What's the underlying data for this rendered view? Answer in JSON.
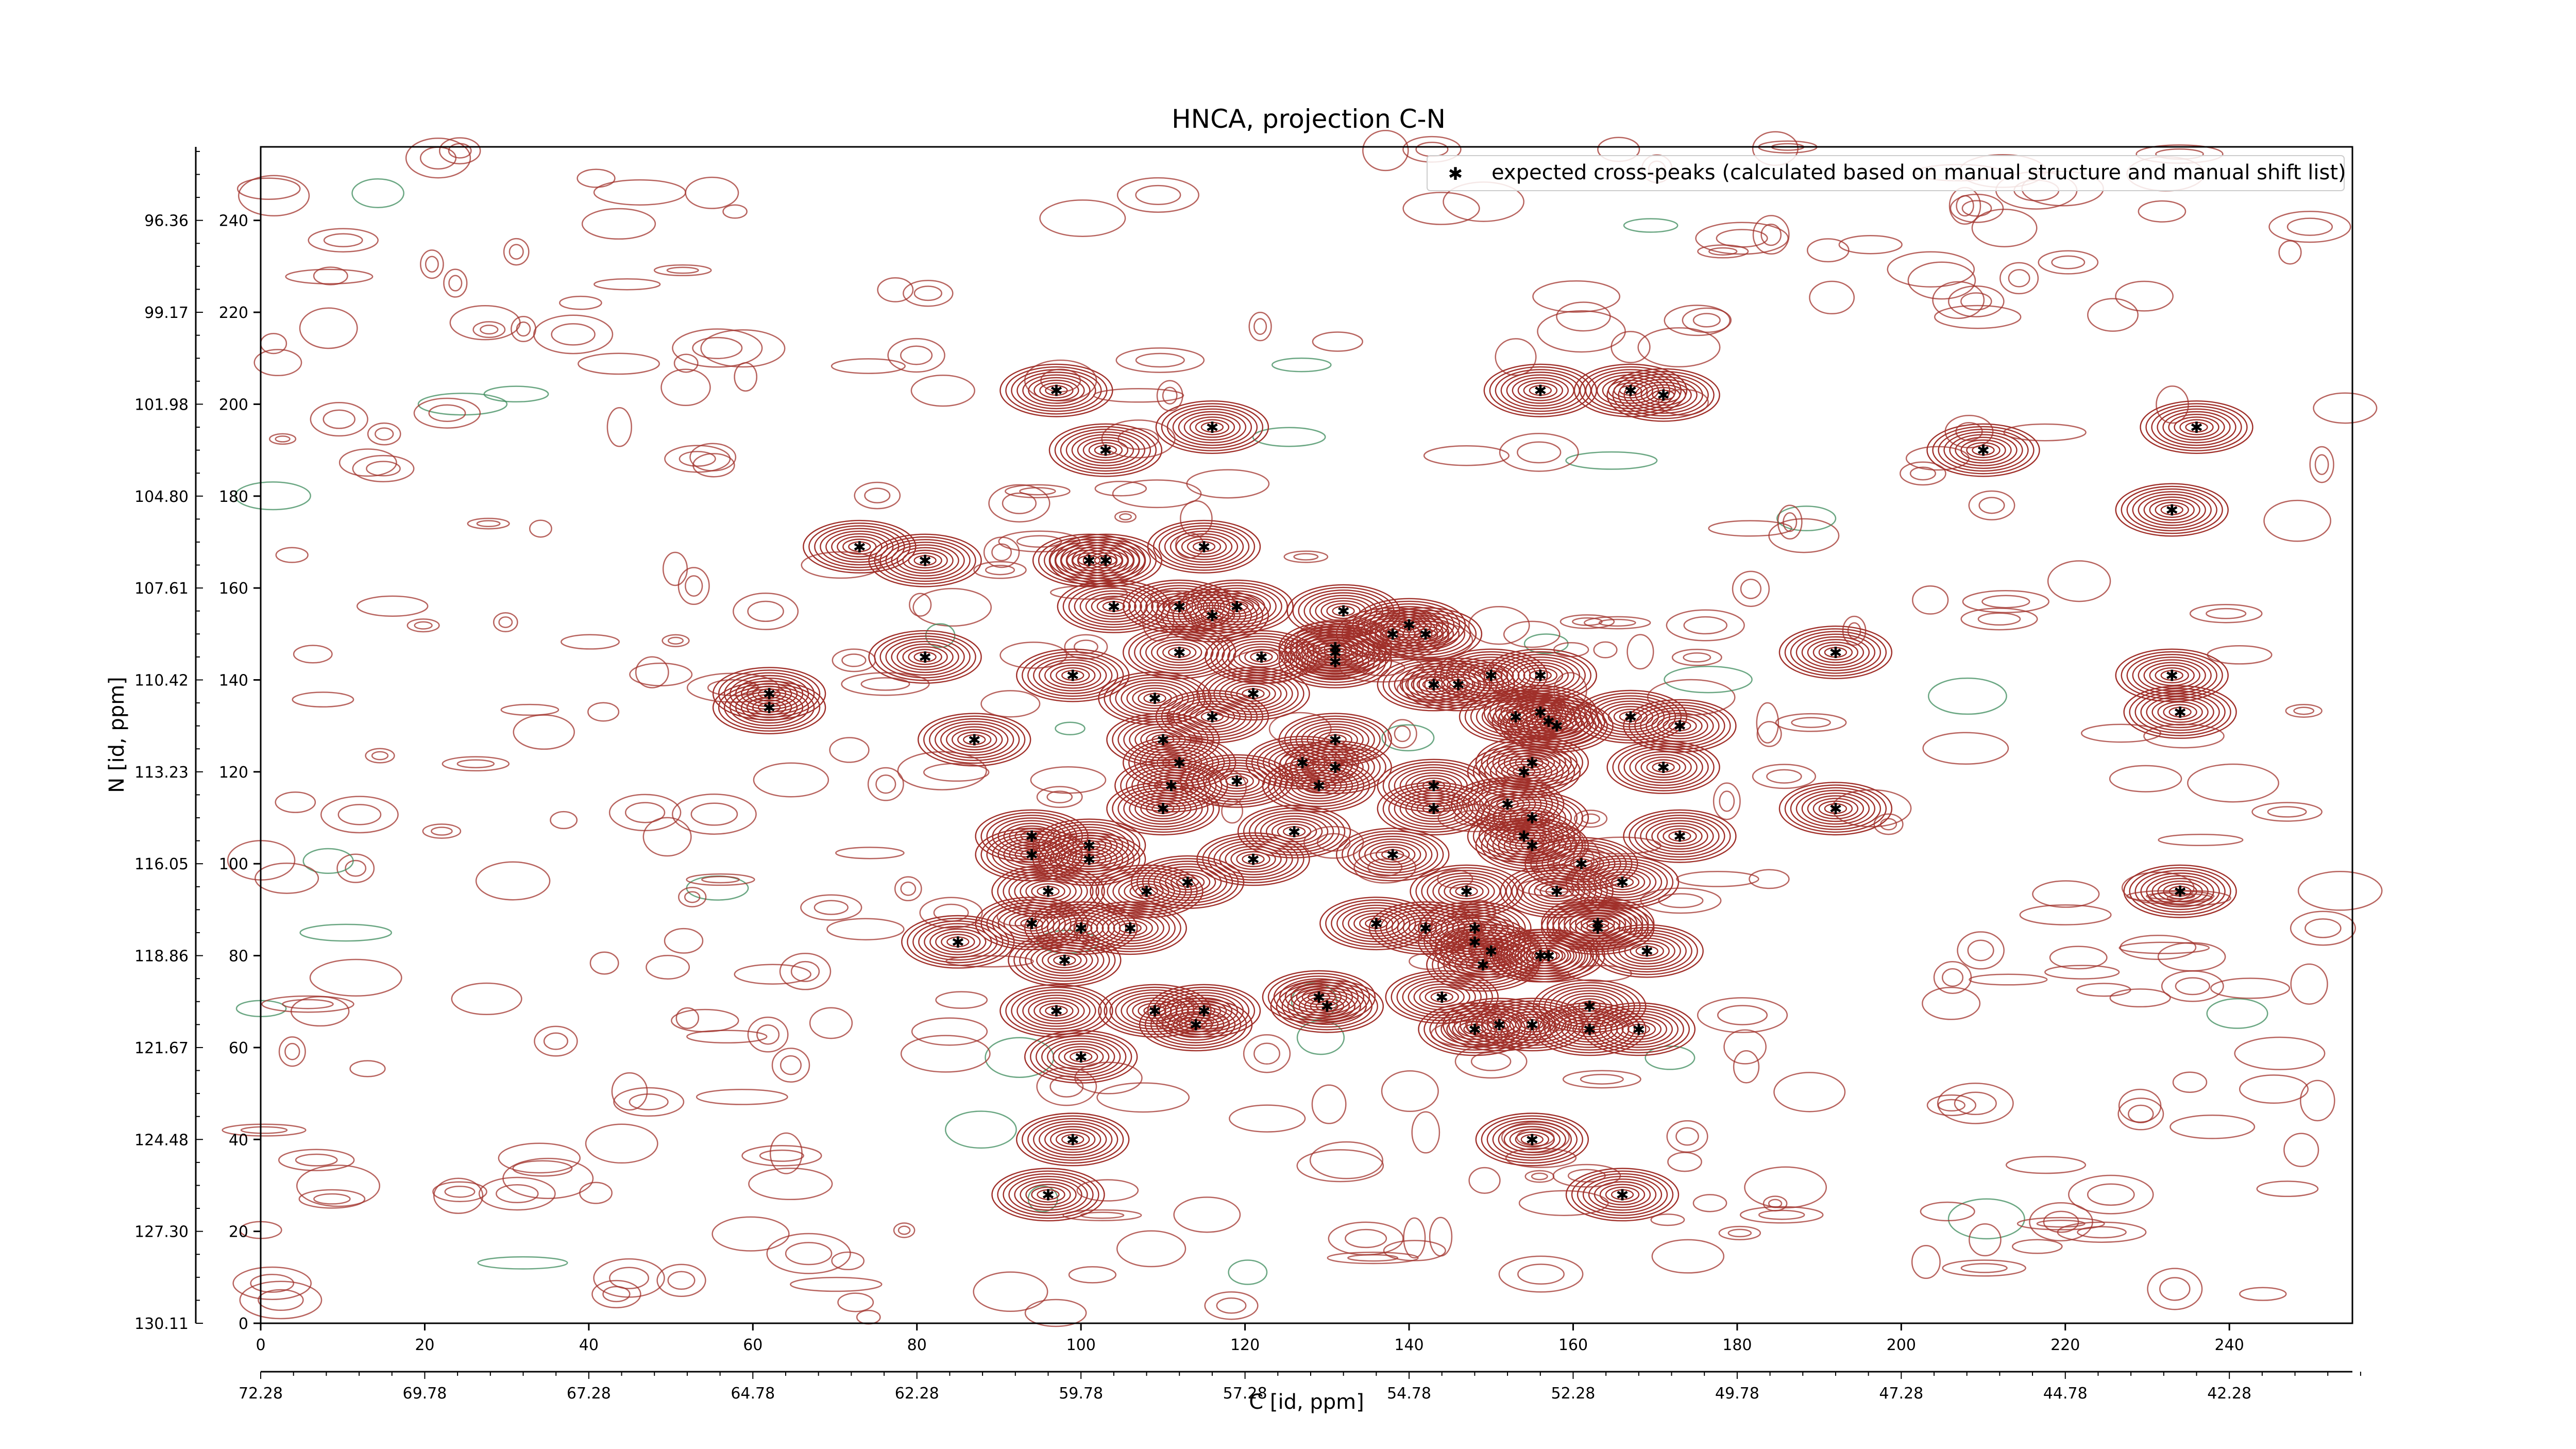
{
  "chart_data": {
    "type": "scatter",
    "title": "HNCA, projection C-N",
    "xlabel": "C [id, ppm]",
    "ylabel": "N [id, ppm]",
    "xlim": [
      0,
      255
    ],
    "ylim": [
      0,
      256
    ],
    "x_ticks": [
      0,
      20,
      40,
      60,
      80,
      100,
      120,
      140,
      160,
      180,
      200,
      220,
      240
    ],
    "x_ppm_ticks": [
      {
        "pos": 0,
        "label": "72.28"
      },
      {
        "pos": 10,
        "label": "69.78"
      },
      {
        "pos": 20,
        "label": "67.28"
      },
      {
        "pos": 30,
        "label": "64.78"
      },
      {
        "pos": 40,
        "label": "62.28"
      },
      {
        "pos": 50,
        "label": "59.78"
      },
      {
        "pos": 60,
        "label": "57.28"
      },
      {
        "pos": 70,
        "label": "54.78"
      },
      {
        "pos": 80,
        "label": "52.28"
      },
      {
        "pos": 90,
        "label": "49.78"
      },
      {
        "pos": 100,
        "label": "47.28"
      },
      {
        "pos": 110,
        "label": "44.78"
      },
      {
        "pos": 120,
        "label": "42.28"
      }
    ],
    "y_ticks": [
      0,
      20,
      40,
      60,
      80,
      100,
      120,
      140,
      160,
      180,
      200,
      220,
      240
    ],
    "y_ppm_ticks": [
      "130.11",
      "127.30",
      "124.48",
      "121.67",
      "118.86",
      "116.05",
      "113.23",
      "110.42",
      "107.61",
      "104.80",
      "101.98",
      "99.17",
      "96.36"
    ],
    "legend": {
      "label": "expected cross-peaks (calculated based on manual structure and manual shift list)",
      "location": "upper right",
      "marker_color": "#0000ff"
    },
    "colors": {
      "positive_contour": "#a0302a",
      "negative_contour": "#3a8a5a",
      "peak_marker": "#0000ff"
    },
    "peaks": [
      [
        62,
        137
      ],
      [
        62,
        134
      ],
      [
        73,
        169
      ],
      [
        81,
        166
      ],
      [
        81,
        145
      ],
      [
        87,
        127
      ],
      [
        97,
        203
      ],
      [
        103,
        190
      ],
      [
        101,
        166
      ],
      [
        103,
        166
      ],
      [
        104,
        156
      ],
      [
        112,
        156
      ],
      [
        116,
        154
      ],
      [
        119,
        156
      ],
      [
        132,
        155
      ],
      [
        140,
        152
      ],
      [
        138,
        150
      ],
      [
        142,
        150
      ],
      [
        116,
        195
      ],
      [
        115,
        169
      ],
      [
        112,
        146
      ],
      [
        122,
        145
      ],
      [
        131,
        147
      ],
      [
        131,
        146
      ],
      [
        131,
        144
      ],
      [
        150,
        141
      ],
      [
        143,
        139
      ],
      [
        146,
        139
      ],
      [
        99,
        141
      ],
      [
        109,
        136
      ],
      [
        121,
        137
      ],
      [
        116,
        132
      ],
      [
        110,
        127
      ],
      [
        112,
        122
      ],
      [
        131,
        127
      ],
      [
        127,
        122
      ],
      [
        129,
        117
      ],
      [
        131,
        121
      ],
      [
        143,
        117
      ],
      [
        111,
        117
      ],
      [
        119,
        118
      ],
      [
        110,
        112
      ],
      [
        143,
        112
      ],
      [
        152,
        113
      ],
      [
        155,
        110
      ],
      [
        154,
        106
      ],
      [
        155,
        104
      ],
      [
        161,
        100
      ],
      [
        126,
        107
      ],
      [
        121,
        101
      ],
      [
        138,
        102
      ],
      [
        113,
        96
      ],
      [
        94,
        106
      ],
      [
        101,
        104
      ],
      [
        101,
        101
      ],
      [
        94,
        102
      ],
      [
        156,
        141
      ],
      [
        153,
        132
      ],
      [
        156,
        133
      ],
      [
        157,
        131
      ],
      [
        158,
        130
      ],
      [
        167,
        132
      ],
      [
        173,
        130
      ],
      [
        155,
        122
      ],
      [
        154,
        120
      ],
      [
        171,
        121
      ],
      [
        96,
        94
      ],
      [
        108,
        94
      ],
      [
        147,
        94
      ],
      [
        158,
        94
      ],
      [
        173,
        106
      ],
      [
        166,
        96
      ],
      [
        94,
        87
      ],
      [
        100,
        86
      ],
      [
        106,
        86
      ],
      [
        98,
        79
      ],
      [
        85,
        83
      ],
      [
        136,
        87
      ],
      [
        142,
        86
      ],
      [
        148,
        86
      ],
      [
        148,
        83
      ],
      [
        150,
        81
      ],
      [
        149,
        78
      ],
      [
        156,
        80
      ],
      [
        157,
        80
      ],
      [
        163,
        87
      ],
      [
        163,
        86
      ],
      [
        169,
        81
      ],
      [
        144,
        71
      ],
      [
        129,
        71
      ],
      [
        97,
        68
      ],
      [
        109,
        68
      ],
      [
        114,
        65
      ],
      [
        115,
        68
      ],
      [
        130,
        69
      ],
      [
        148,
        64
      ],
      [
        151,
        65
      ],
      [
        155,
        65
      ],
      [
        162,
        69
      ],
      [
        162,
        64
      ],
      [
        168,
        64
      ],
      [
        100,
        58
      ],
      [
        99,
        40
      ],
      [
        96,
        28
      ],
      [
        155,
        40
      ],
      [
        166,
        28
      ],
      [
        156,
        203
      ],
      [
        167,
        203
      ],
      [
        171,
        202
      ],
      [
        192,
        146
      ],
      [
        192,
        112
      ],
      [
        210,
        190
      ],
      [
        236,
        195
      ],
      [
        233,
        177
      ],
      [
        233,
        141
      ],
      [
        234,
        133
      ],
      [
        234,
        94
      ]
    ]
  }
}
